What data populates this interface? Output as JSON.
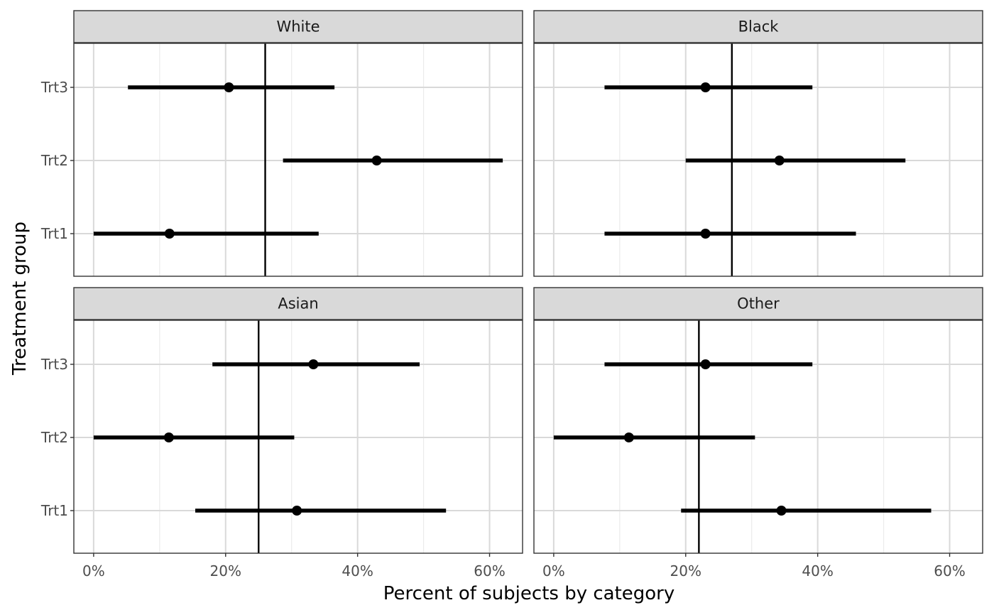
{
  "chart_data": {
    "type": "forest",
    "xlabel": "Percent of subjects by category",
    "ylabel": "Treatment group",
    "xlim": [
      -0.03,
      0.65
    ],
    "xticks": [
      0,
      0.2,
      0.4,
      0.6
    ],
    "xtick_labels": [
      "0%",
      "20%",
      "40%",
      "60%"
    ],
    "categories": [
      "Trt3",
      "Trt2",
      "Trt1"
    ],
    "grid": true,
    "point_color": "#000000",
    "strip_fill": "#d9d9d9",
    "panels": [
      {
        "name": "White",
        "reference": 0.26,
        "points": [
          {
            "group": "Trt3",
            "estimate": 0.205,
            "lower": 0.052,
            "upper": 0.365
          },
          {
            "group": "Trt2",
            "estimate": 0.429,
            "lower": 0.287,
            "upper": 0.62
          },
          {
            "group": "Trt1",
            "estimate": 0.115,
            "lower": 0.0,
            "upper": 0.341
          }
        ]
      },
      {
        "name": "Black",
        "reference": 0.27,
        "points": [
          {
            "group": "Trt3",
            "estimate": 0.23,
            "lower": 0.077,
            "upper": 0.392
          },
          {
            "group": "Trt2",
            "estimate": 0.342,
            "lower": 0.2,
            "upper": 0.533
          },
          {
            "group": "Trt1",
            "estimate": 0.23,
            "lower": 0.077,
            "upper": 0.458
          }
        ]
      },
      {
        "name": "Asian",
        "reference": 0.25,
        "points": [
          {
            "group": "Trt3",
            "estimate": 0.333,
            "lower": 0.18,
            "upper": 0.494
          },
          {
            "group": "Trt2",
            "estimate": 0.114,
            "lower": 0.0,
            "upper": 0.304
          },
          {
            "group": "Trt1",
            "estimate": 0.308,
            "lower": 0.154,
            "upper": 0.534
          }
        ]
      },
      {
        "name": "Other",
        "reference": 0.22,
        "points": [
          {
            "group": "Trt3",
            "estimate": 0.23,
            "lower": 0.077,
            "upper": 0.392
          },
          {
            "group": "Trt2",
            "estimate": 0.114,
            "lower": 0.0,
            "upper": 0.305
          },
          {
            "group": "Trt1",
            "estimate": 0.345,
            "lower": 0.193,
            "upper": 0.572
          }
        ]
      }
    ]
  }
}
